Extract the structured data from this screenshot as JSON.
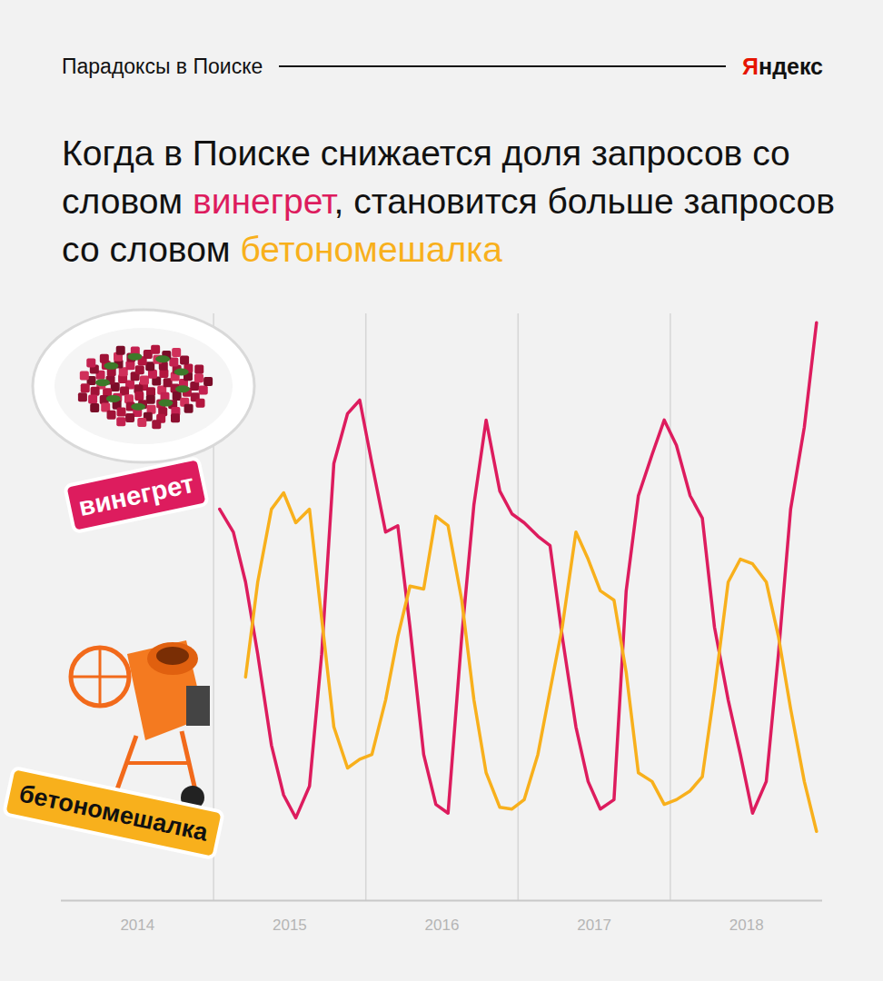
{
  "header": {
    "text": "Парадоксы в Поиске",
    "brand": "Яндекс"
  },
  "chart_data": {
    "type": "line",
    "title": "Когда в Поиске снижается доля запросов со словом винегрет, становится больше запросов со словом бетономешалка",
    "x": [
      2015.04,
      2015.13,
      2015.21,
      2015.29,
      2015.38,
      2015.46,
      2015.54,
      2015.63,
      2015.71,
      2015.79,
      2015.88,
      2015.96,
      2016.04,
      2016.13,
      2016.21,
      2016.29,
      2016.38,
      2016.46,
      2016.54,
      2016.63,
      2016.71,
      2016.79,
      2016.88,
      2016.96,
      2017.04,
      2017.13,
      2017.21,
      2017.29,
      2017.38,
      2017.46,
      2017.54,
      2017.63,
      2017.71,
      2017.79,
      2017.88,
      2017.96,
      2018.04,
      2018.13,
      2018.21,
      2018.29,
      2018.38,
      2018.46,
      2018.54,
      2018.63,
      2018.71,
      2018.79,
      2018.88,
      2018.96
    ],
    "series": [
      {
        "name": "винегрет",
        "color": "#dd1c5e",
        "values": [
          66.7,
          62.8,
          54.3,
          42.0,
          26.5,
          18.0,
          14.1,
          19.5,
          42.0,
          74.5,
          83.0,
          85.3,
          74.5,
          62.8,
          63.9,
          46.6,
          24.9,
          16.4,
          14.9,
          45.0,
          67.5,
          81.9,
          69.8,
          65.9,
          64.4,
          62.1,
          60.5,
          45.0,
          29.6,
          20.3,
          15.6,
          17.2,
          52.8,
          69.0,
          76.0,
          81.9,
          77.6,
          69.0,
          65.2,
          46.6,
          34.2,
          24.9,
          14.9,
          20.3,
          42.0,
          66.7,
          80.7,
          98.5
        ]
      },
      {
        "name": "бетономешалка",
        "color": "#f8b01c",
        "values": [
          null,
          null,
          38.1,
          54.3,
          66.7,
          69.5,
          64.4,
          66.7,
          48.1,
          29.6,
          22.6,
          24.1,
          24.9,
          34.2,
          45.0,
          53.6,
          53.1,
          65.5,
          63.9,
          51.2,
          34.2,
          21.8,
          15.9,
          15.6,
          17.2,
          24.9,
          35.8,
          46.6,
          62.8,
          58.2,
          52.8,
          51.2,
          38.9,
          21.8,
          20.3,
          16.4,
          17.2,
          18.7,
          21.1,
          35.8,
          54.3,
          58.2,
          57.4,
          54.3,
          45.0,
          32.7,
          20.3,
          11.8
        ]
      }
    ],
    "xlim": [
      2014,
      2019
    ],
    "xticks": [
      {
        "value": 2014.5,
        "label": "2014"
      },
      {
        "value": 2015.5,
        "label": "2015"
      },
      {
        "value": 2016.5,
        "label": "2016"
      },
      {
        "value": 2017.5,
        "label": "2017"
      },
      {
        "value": 2018.5,
        "label": "2018"
      }
    ],
    "ylim": [
      0,
      100
    ],
    "yticks": [],
    "grid": true,
    "tick_labels": "x"
  }
}
